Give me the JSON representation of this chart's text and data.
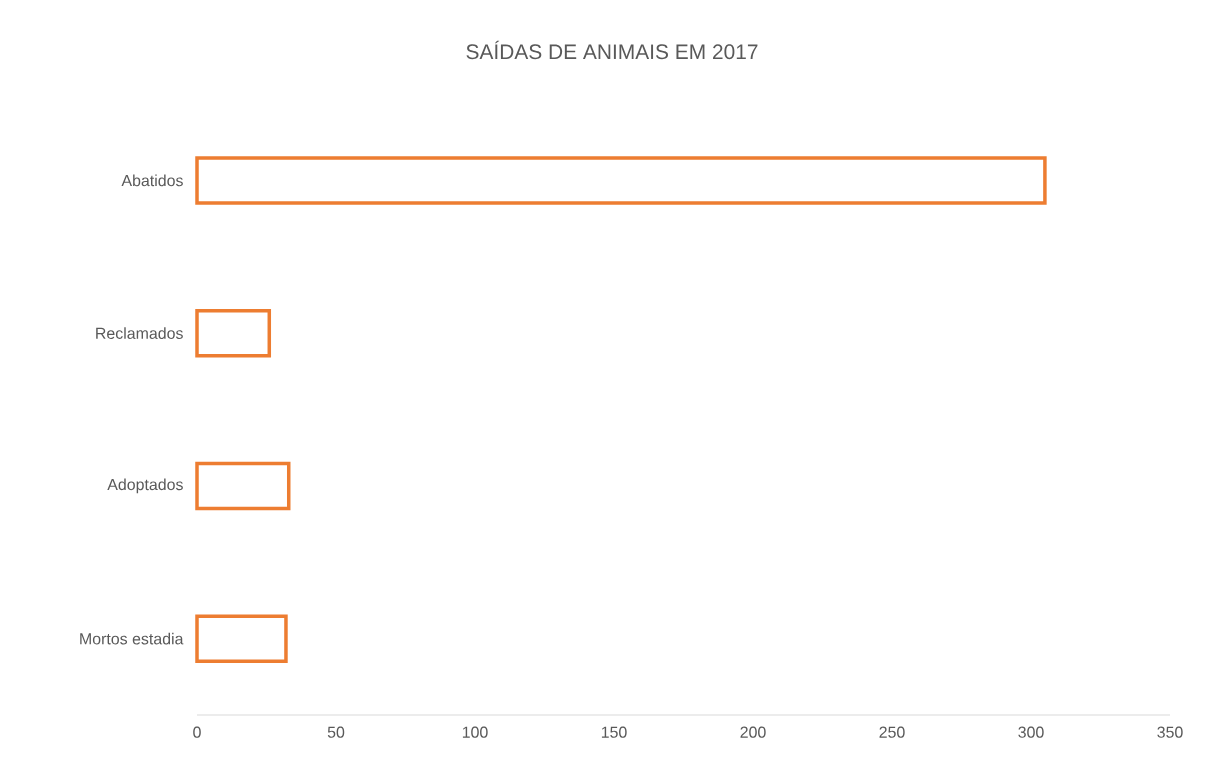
{
  "chart_data": {
    "type": "bar",
    "orientation": "horizontal",
    "title": "SAÍDAS DE ANIMAIS EM 2017",
    "categories": [
      "Abatidos",
      "Reclamados",
      "Adoptados",
      "Mortos estadia"
    ],
    "values": [
      305,
      26,
      33,
      32
    ],
    "color": "#ed7d31",
    "xlim": [
      0,
      350
    ],
    "xticks": [
      0,
      50,
      100,
      150,
      200,
      250,
      300,
      350
    ]
  }
}
